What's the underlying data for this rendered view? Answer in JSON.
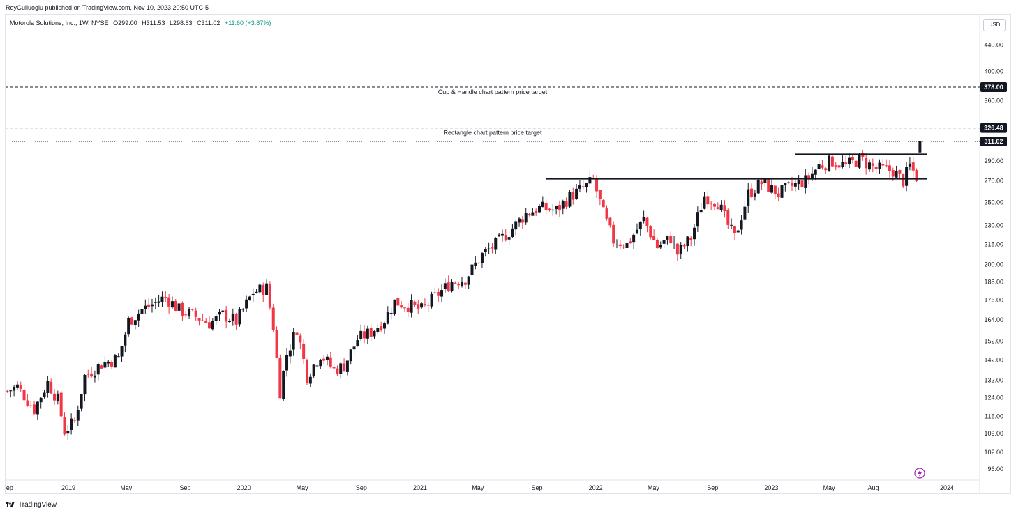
{
  "header": {
    "publisher_text": "RoyGulluoglu published on TradingView.com, Nov 10, 2023 20:50 UTC-5"
  },
  "legend": {
    "symbol": "Motorola Solutions, Inc., 1W, NYSE",
    "open": "O299.00",
    "high": "H311.53",
    "low": "L298.63",
    "close": "C311.02",
    "change": "+11.60 (+3.87%)",
    "change_color": "#089981"
  },
  "currency_badge": "USD",
  "footer": {
    "brand": "TradingView"
  },
  "colors": {
    "up": "#131722",
    "down": "#f23645",
    "grid_border": "#e0e3eb",
    "badge_bg": "#131722",
    "marker": "#9c27b0"
  },
  "chart_data": {
    "type": "candlestick",
    "symbol": "MSI",
    "interval": "1W",
    "y_scale": "log",
    "ylim": [
      92,
      470
    ],
    "y_ticks": [
      {
        "value": 440,
        "label": "440.00"
      },
      {
        "value": 400,
        "label": "400.00"
      },
      {
        "value": 360,
        "label": "360.00"
      },
      {
        "value": 290,
        "label": "290.00"
      },
      {
        "value": 270,
        "label": "270.00"
      },
      {
        "value": 250,
        "label": "250.00"
      },
      {
        "value": 230,
        "label": "230.00"
      },
      {
        "value": 215,
        "label": "215.00"
      },
      {
        "value": 200,
        "label": "200.00"
      },
      {
        "value": 188,
        "label": "188.00"
      },
      {
        "value": 176,
        "label": "176.00"
      },
      {
        "value": 164,
        "label": "164.00"
      },
      {
        "value": 152,
        "label": "152.00"
      },
      {
        "value": 142,
        "label": "142.00"
      },
      {
        "value": 132,
        "label": "132.00"
      },
      {
        "value": 124,
        "label": "124.00"
      },
      {
        "value": 116,
        "label": "116.00"
      },
      {
        "value": 109,
        "label": "109.00"
      },
      {
        "value": 102,
        "label": "102.00"
      },
      {
        "value": 96,
        "label": "96.00"
      }
    ],
    "price_badges": [
      {
        "value": 378.0,
        "label": "378.00"
      },
      {
        "value": 326.48,
        "label": "326.48"
      },
      {
        "value": 311.02,
        "label": "311.02"
      }
    ],
    "x_ticks": [
      {
        "date": "2018-09-01",
        "label": "ep"
      },
      {
        "date": "2019-01-01",
        "label": "2019"
      },
      {
        "date": "2019-05-01",
        "label": "May"
      },
      {
        "date": "2019-09-01",
        "label": "Sep"
      },
      {
        "date": "2020-01-01",
        "label": "2020"
      },
      {
        "date": "2020-05-01",
        "label": "May"
      },
      {
        "date": "2020-09-01",
        "label": "Sep"
      },
      {
        "date": "2021-01-01",
        "label": "2021"
      },
      {
        "date": "2021-05-01",
        "label": "May"
      },
      {
        "date": "2021-09-01",
        "label": "Sep"
      },
      {
        "date": "2022-01-01",
        "label": "2022"
      },
      {
        "date": "2022-05-01",
        "label": "May"
      },
      {
        "date": "2022-09-01",
        "label": "Sep"
      },
      {
        "date": "2023-01-01",
        "label": "2023"
      },
      {
        "date": "2023-05-01",
        "label": "May"
      },
      {
        "date": "2023-08-01",
        "label": "Aug"
      },
      {
        "date": "2024-01-01",
        "label": "2024"
      }
    ],
    "anchors": [
      [
        "2018-08-27",
        127
      ],
      [
        "2018-09-17",
        129
      ],
      [
        "2018-10-22",
        119
      ],
      [
        "2018-11-19",
        131
      ],
      [
        "2018-12-10",
        123
      ],
      [
        "2018-12-24",
        110
      ],
      [
        "2019-01-14",
        114
      ],
      [
        "2019-02-04",
        134
      ],
      [
        "2019-03-11",
        140
      ],
      [
        "2019-04-15",
        143
      ],
      [
        "2019-05-06",
        163
      ],
      [
        "2019-06-03",
        170
      ],
      [
        "2019-07-22",
        178
      ],
      [
        "2019-08-19",
        170
      ],
      [
        "2019-09-30",
        165
      ],
      [
        "2019-10-21",
        162
      ],
      [
        "2019-11-18",
        167
      ],
      [
        "2019-12-16",
        163
      ],
      [
        "2020-01-20",
        181
      ],
      [
        "2020-02-17",
        184
      ],
      [
        "2020-03-02",
        160
      ],
      [
        "2020-03-16",
        127
      ],
      [
        "2020-03-30",
        145
      ],
      [
        "2020-04-20",
        159
      ],
      [
        "2020-05-11",
        134
      ],
      [
        "2020-06-08",
        145
      ],
      [
        "2020-07-06",
        137
      ],
      [
        "2020-07-27",
        139
      ],
      [
        "2020-08-24",
        153
      ],
      [
        "2020-09-21",
        157
      ],
      [
        "2020-10-19",
        164
      ],
      [
        "2020-11-09",
        175
      ],
      [
        "2020-12-14",
        172
      ],
      [
        "2021-01-04",
        170
      ],
      [
        "2021-02-08",
        180
      ],
      [
        "2021-03-08",
        188
      ],
      [
        "2021-04-05",
        190
      ],
      [
        "2021-05-10",
        207
      ],
      [
        "2021-06-07",
        215
      ],
      [
        "2021-07-05",
        225
      ],
      [
        "2021-08-09",
        240
      ],
      [
        "2021-09-06",
        245
      ],
      [
        "2021-10-11",
        243
      ],
      [
        "2021-11-08",
        255
      ],
      [
        "2021-12-13",
        265
      ],
      [
        "2021-12-27",
        271
      ],
      [
        "2022-01-17",
        240
      ],
      [
        "2022-02-07",
        218
      ],
      [
        "2022-03-07",
        215
      ],
      [
        "2022-04-11",
        235
      ],
      [
        "2022-05-09",
        213
      ],
      [
        "2022-06-06",
        220
      ],
      [
        "2022-06-20",
        208
      ],
      [
        "2022-07-18",
        220
      ],
      [
        "2022-08-15",
        256
      ],
      [
        "2022-09-12",
        250
      ],
      [
        "2022-10-03",
        230
      ],
      [
        "2022-10-17",
        220
      ],
      [
        "2022-11-14",
        258
      ],
      [
        "2022-12-12",
        268
      ],
      [
        "2023-01-16",
        258
      ],
      [
        "2023-02-13",
        265
      ],
      [
        "2023-03-13",
        270
      ],
      [
        "2023-04-10",
        285
      ],
      [
        "2023-05-08",
        290
      ],
      [
        "2023-06-05",
        285
      ],
      [
        "2023-07-03",
        292
      ],
      [
        "2023-08-07",
        282
      ],
      [
        "2023-09-11",
        280
      ],
      [
        "2023-10-02",
        270
      ],
      [
        "2023-10-16",
        285
      ],
      [
        "2023-10-30",
        274
      ],
      [
        "2023-11-06",
        299
      ]
    ],
    "last_candle": {
      "date": "2023-11-06",
      "open": 299.0,
      "high": 311.53,
      "low": 298.63,
      "close": 311.02
    },
    "horizontal_levels": [
      {
        "value": 378.0,
        "style": "dashed",
        "label": "Cup & Handle chart pattern price target"
      },
      {
        "value": 326.48,
        "style": "dashed",
        "label": "Rectangle chart pattern price target"
      },
      {
        "value": 311.02,
        "style": "dotted",
        "label": ""
      }
    ],
    "trend_lines": [
      {
        "from": "2021-09-20",
        "to": "2023-11-20",
        "value": 272
      },
      {
        "from": "2023-02-20",
        "to": "2023-11-20",
        "value": 297
      }
    ],
    "grid": false,
    "legend_position": "top-left"
  }
}
